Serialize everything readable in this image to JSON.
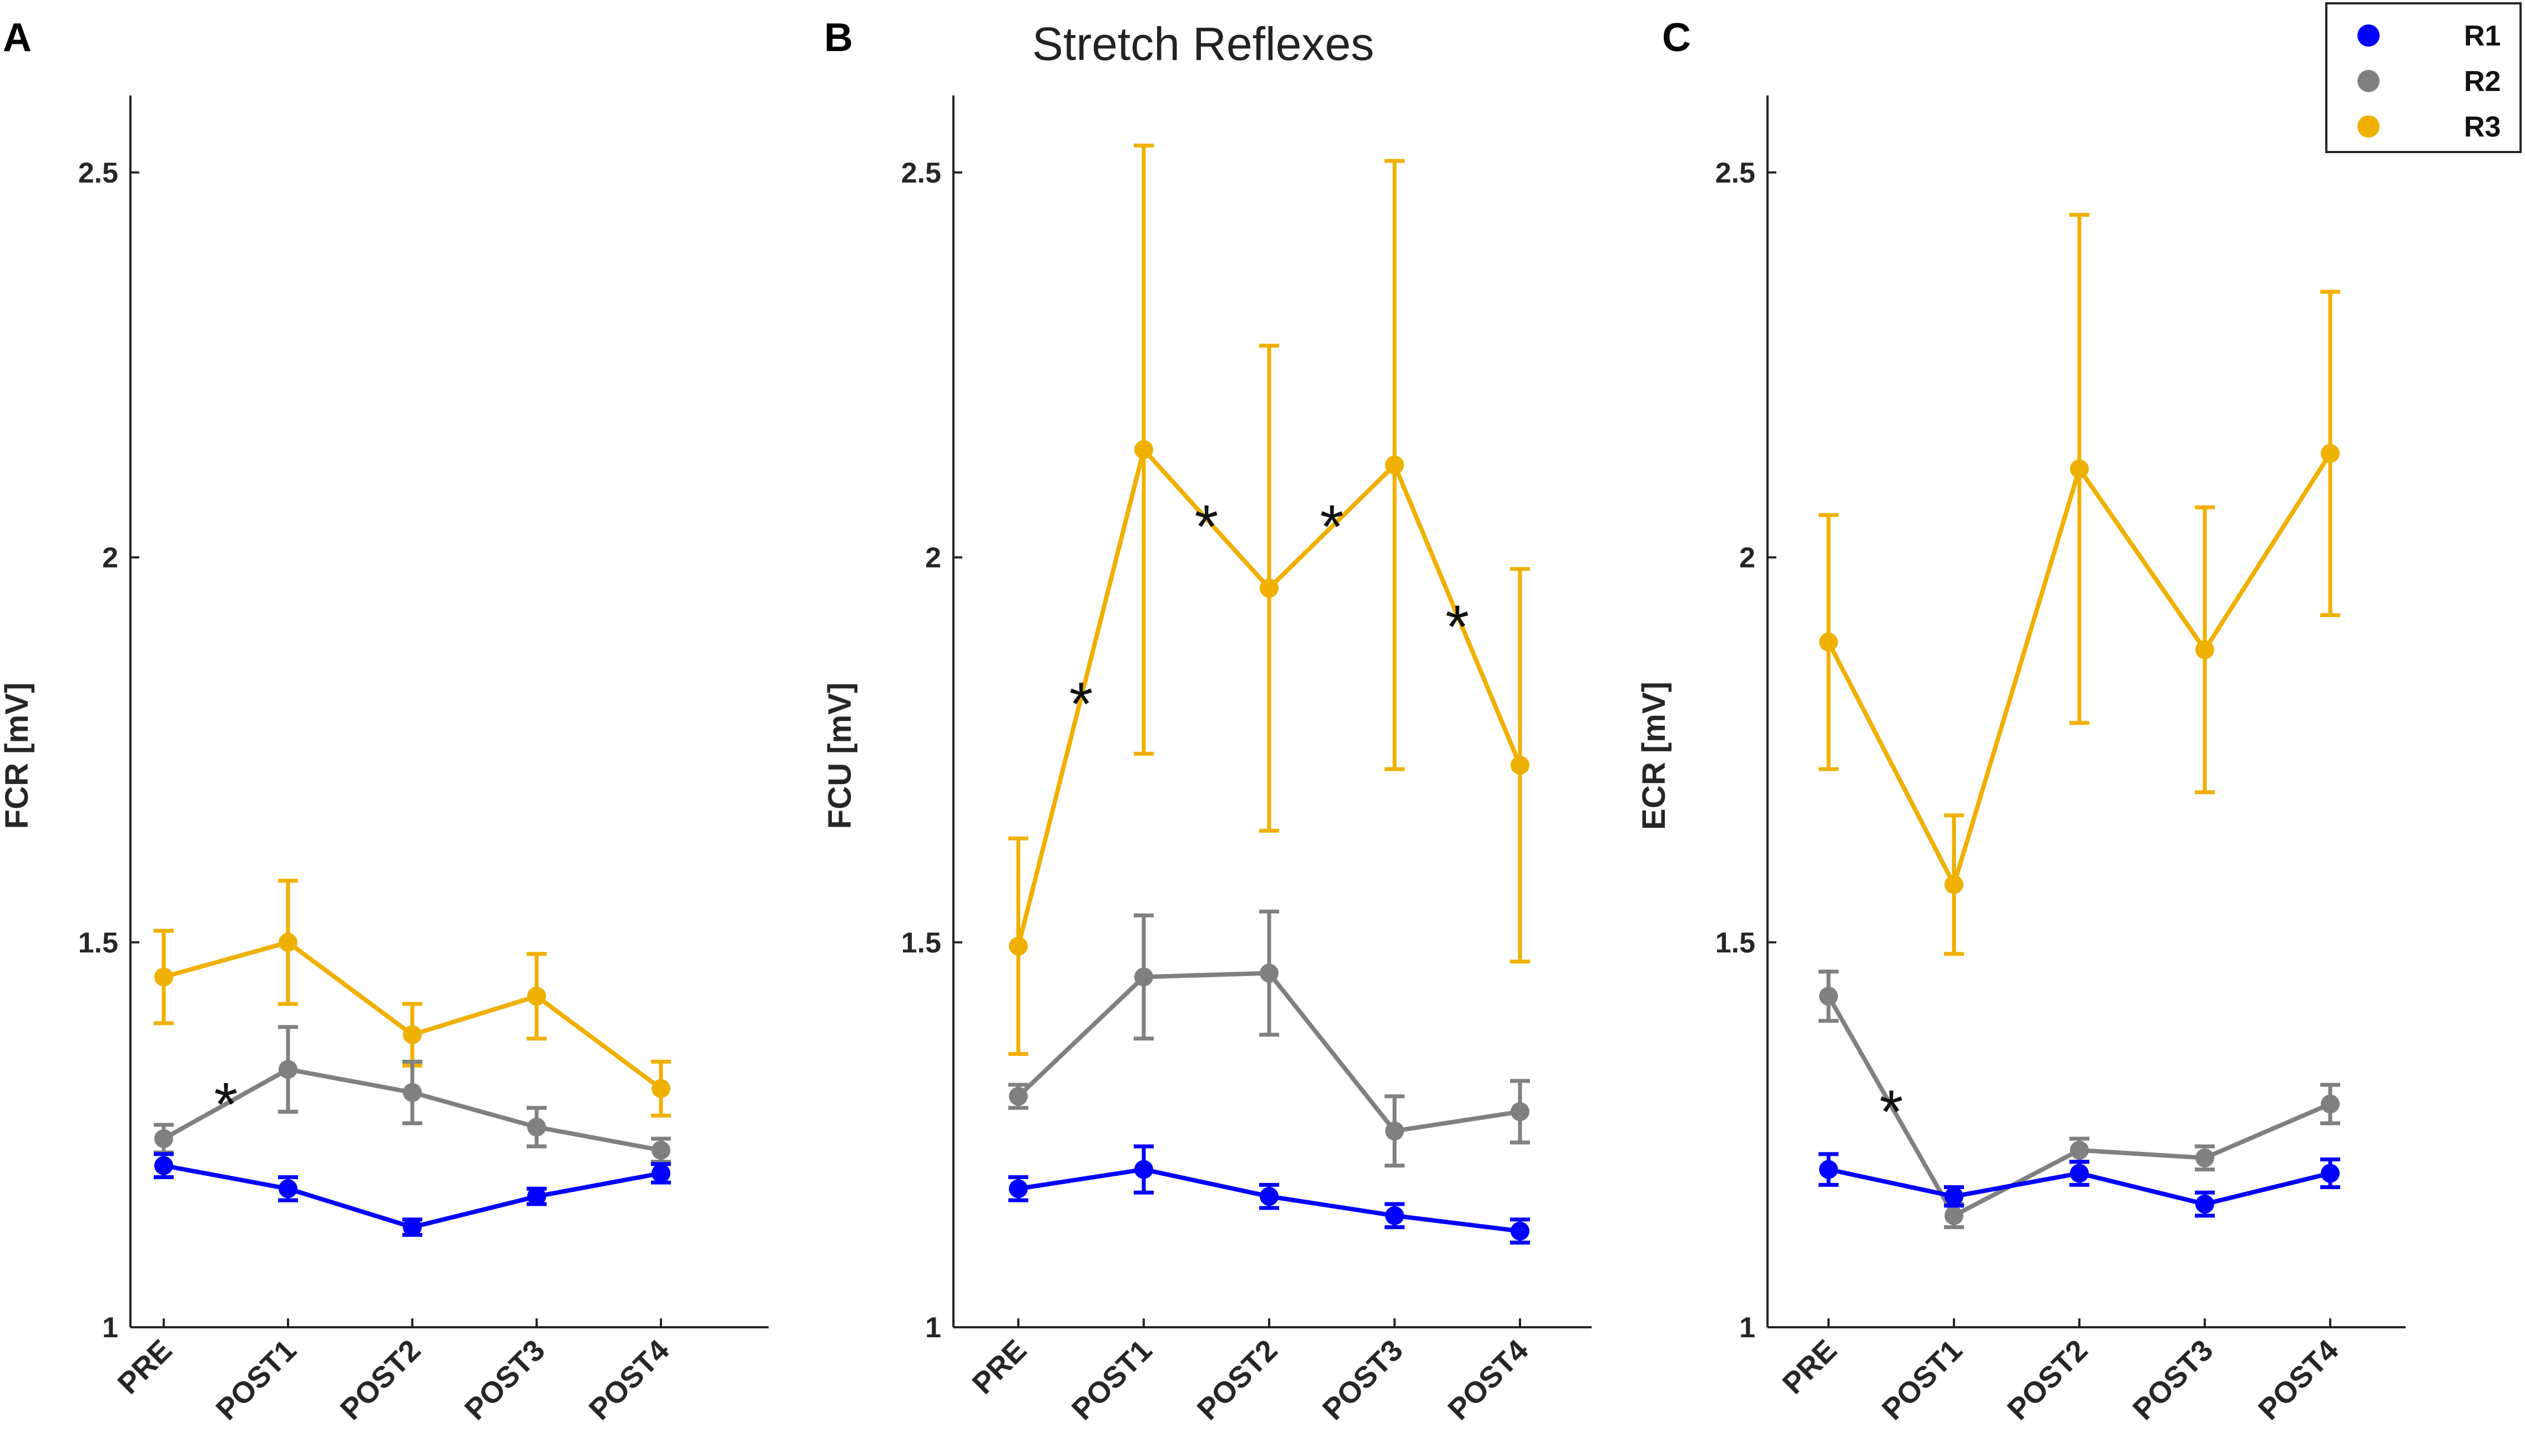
{
  "chart_data": {
    "type": "line",
    "title": "Stretch Reflexes",
    "categories": [
      "PRE",
      "POST1",
      "POST2",
      "POST3",
      "POST4"
    ],
    "ylim": [
      1,
      2.6
    ],
    "yticks": [
      1,
      1.5,
      2,
      2.5
    ],
    "ytick_labels": [
      "1",
      "1.5",
      "2",
      "2.5"
    ],
    "legend": [
      {
        "name": "R1",
        "color": "#0000ff"
      },
      {
        "name": "R2",
        "color": "#808080"
      },
      {
        "name": "R3",
        "color": "#f0b000"
      }
    ],
    "panels": [
      {
        "letter": "A",
        "ylabel": "FCR [mV]",
        "series": [
          {
            "name": "R1",
            "values": [
              1.21,
              1.18,
              1.13,
              1.17,
              1.2
            ],
            "err": [
              0.015,
              0.015,
              0.01,
              0.01,
              0.012
            ]
          },
          {
            "name": "R2",
            "values": [
              1.245,
              1.335,
              1.305,
              1.26,
              1.23
            ],
            "err": [
              0.018,
              0.055,
              0.04,
              0.025,
              0.015
            ]
          },
          {
            "name": "R3",
            "values": [
              1.455,
              1.5,
              1.38,
              1.43,
              1.31
            ],
            "err": [
              0.06,
              0.08,
              0.04,
              0.055,
              0.035
            ]
          }
        ],
        "annotations": [
          {
            "text": "*",
            "between": [
              0,
              1
            ],
            "value": 1.3
          }
        ]
      },
      {
        "letter": "B",
        "ylabel": "FCU [mV]",
        "series": [
          {
            "name": "R1",
            "values": [
              1.18,
              1.205,
              1.17,
              1.145,
              1.125
            ],
            "err": [
              0.015,
              0.03,
              0.015,
              0.015,
              0.015
            ]
          },
          {
            "name": "R2",
            "values": [
              1.3,
              1.455,
              1.46,
              1.255,
              1.28
            ],
            "err": [
              0.015,
              0.08,
              0.08,
              0.045,
              0.04
            ]
          },
          {
            "name": "R3",
            "values": [
              1.495,
              2.14,
              1.96,
              2.12,
              1.73
            ],
            "err": [
              0.14,
              0.395,
              0.315,
              0.395,
              0.255
            ]
          }
        ],
        "annotations": [
          {
            "text": "*",
            "between": [
              0,
              1
            ],
            "value": 1.82
          },
          {
            "text": "*",
            "between": [
              1,
              2
            ],
            "value": 2.05
          },
          {
            "text": "*",
            "between": [
              2,
              3
            ],
            "value": 2.05
          },
          {
            "text": "*",
            "between": [
              3,
              4
            ],
            "value": 1.92
          }
        ]
      },
      {
        "letter": "C",
        "ylabel": "ECR [mV]",
        "series": [
          {
            "name": "R1",
            "values": [
              1.205,
              1.17,
              1.2,
              1.16,
              1.2
            ],
            "err": [
              0.02,
              0.012,
              0.015,
              0.015,
              0.018
            ]
          },
          {
            "name": "R2",
            "values": [
              1.43,
              1.145,
              1.23,
              1.22,
              1.29
            ],
            "err": [
              0.032,
              0.015,
              0.015,
              0.015,
              0.025
            ]
          },
          {
            "name": "R3",
            "values": [
              1.89,
              1.575,
              2.115,
              1.88,
              2.135
            ],
            "err": [
              0.165,
              0.09,
              0.33,
              0.185,
              0.21
            ]
          }
        ],
        "annotations": [
          {
            "text": "*",
            "between": [
              0,
              1
            ],
            "value": 1.29
          }
        ]
      }
    ]
  }
}
